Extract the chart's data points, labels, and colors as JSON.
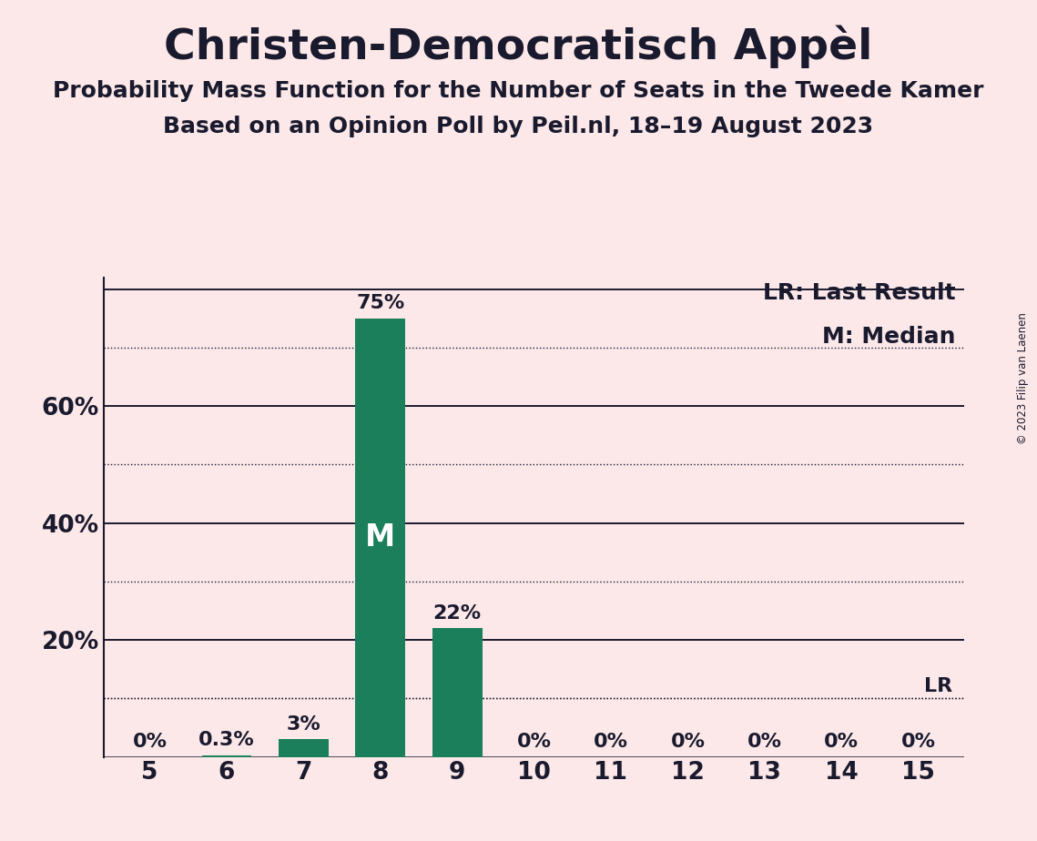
{
  "title": "Christen-Democratisch Appèl",
  "subtitle1": "Probability Mass Function for the Number of Seats in the Tweede Kamer",
  "subtitle2": "Based on an Opinion Poll by Peil.nl, 18–19 August 2023",
  "copyright": "© 2023 Filip van Laenen",
  "categories": [
    5,
    6,
    7,
    8,
    9,
    10,
    11,
    12,
    13,
    14,
    15
  ],
  "values": [
    0.0,
    0.3,
    3.0,
    75.0,
    22.0,
    0.0,
    0.0,
    0.0,
    0.0,
    0.0,
    0.0
  ],
  "labels": [
    "0%",
    "0.3%",
    "3%",
    "75%",
    "22%",
    "0%",
    "0%",
    "0%",
    "0%",
    "0%",
    "0%"
  ],
  "bar_color": "#1a7f5a",
  "background_color": "#fce8e8",
  "median_bar": 8,
  "last_result_value": 10.0,
  "solid_grid_lines": [
    0,
    20,
    40,
    60,
    80
  ],
  "dotted_grid_lines": [
    10,
    30,
    50,
    70
  ],
  "lr_dotted_line": 10.0,
  "legend_lr": "LR: Last Result",
  "legend_m": "M: Median",
  "title_fontsize": 34,
  "subtitle_fontsize": 18,
  "label_fontsize": 16,
  "tick_fontsize": 19,
  "legend_fontsize": 18,
  "text_color": "#1a1a2e",
  "ylim": [
    0,
    82
  ]
}
